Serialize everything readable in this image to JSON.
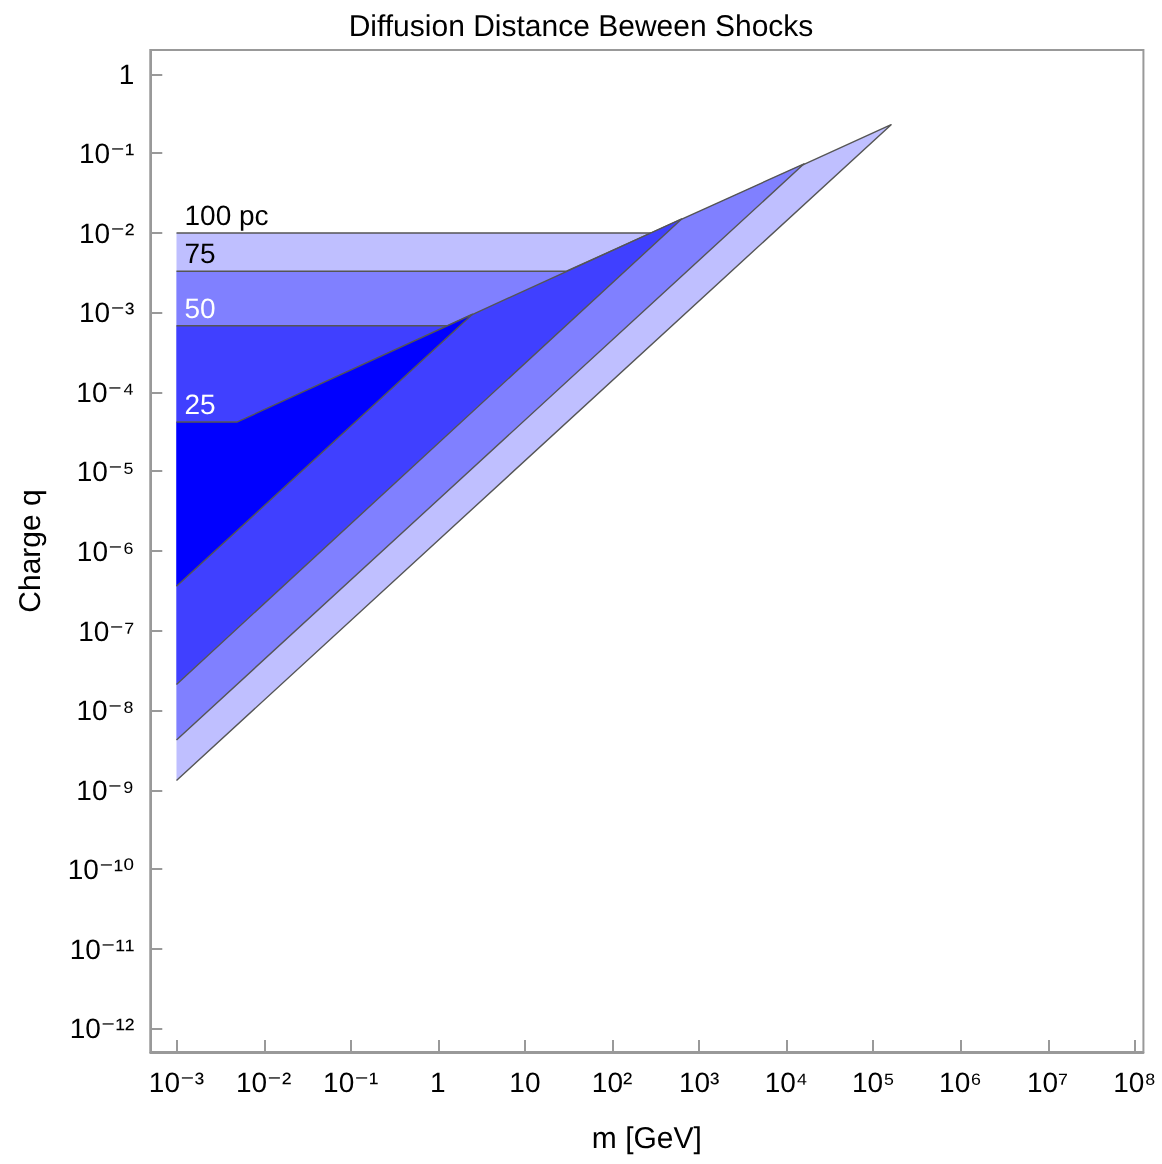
{
  "chart_data": {
    "type": "area",
    "title": "Diffusion Distance Beween Shocks",
    "xlabel": "m [GeV]",
    "ylabel": "Charge q",
    "log": "xy",
    "grid": false,
    "xlim": [
      0.0005,
      126000000
    ],
    "ylim": [
      5e-13,
      2
    ],
    "xticks": [
      {
        "value": 0.001,
        "label": "10⁻³"
      },
      {
        "value": 0.01,
        "label": "10⁻²"
      },
      {
        "value": 0.1,
        "label": "10⁻¹"
      },
      1,
      10,
      {
        "value": 100,
        "label": "10²"
      },
      {
        "value": 1000,
        "label": "10³"
      },
      {
        "value": 10000,
        "label": "10⁴"
      },
      {
        "value": 100000,
        "label": "10⁵"
      },
      {
        "value": 1000000,
        "label": "10⁶"
      },
      {
        "value": 10000000,
        "label": "10⁷"
      },
      {
        "value": 100000000,
        "label": "10⁸"
      }
    ],
    "yticks": [
      {
        "value": 1e-12,
        "label": "10⁻¹²"
      },
      {
        "value": 1e-11,
        "label": "10⁻¹¹"
      },
      {
        "value": 1e-10,
        "label": "10⁻¹⁰"
      },
      {
        "value": 1e-09,
        "label": "10⁻⁹"
      },
      {
        "value": 1e-08,
        "label": "10⁻⁸"
      },
      {
        "value": 1e-07,
        "label": "10⁻⁷"
      },
      {
        "value": 1e-06,
        "label": "10⁻⁶"
      },
      {
        "value": 1e-05,
        "label": "10⁻⁵"
      },
      {
        "value": 0.0001,
        "label": "10⁻⁴"
      },
      {
        "value": 0.001,
        "label": "10⁻³"
      },
      {
        "value": 0.01,
        "label": "10⁻²"
      },
      {
        "value": 0.1,
        "label": "10⁻¹"
      },
      1
    ],
    "series": [
      {
        "name": "100 pc",
        "color": "#bfbfff",
        "x": [
          0.001,
          300,
          160000,
          0.001
        ],
        "values": [
          0.01,
          0.01,
          0.23,
          1.3e-09
        ]
      },
      {
        "name": "75",
        "color": "#8080ff",
        "x": [
          0.001,
          30,
          16000,
          0.001
        ],
        "values": [
          0.0033,
          0.0033,
          0.074,
          4.2e-09
        ]
      },
      {
        "name": "50",
        "color": "#4040ff",
        "x": [
          0.001,
          1.3,
          630,
          0.001
        ],
        "values": [
          0.00068,
          0.00068,
          0.015,
          2.1e-08
        ]
      },
      {
        "name": "25",
        "color": "#0000ff",
        "x": [
          0.001,
          0.005,
          2.5,
          0.001
        ],
        "values": [
          4.2e-05,
          4.2e-05,
          0.00095,
          3.6e-07
        ]
      }
    ]
  }
}
